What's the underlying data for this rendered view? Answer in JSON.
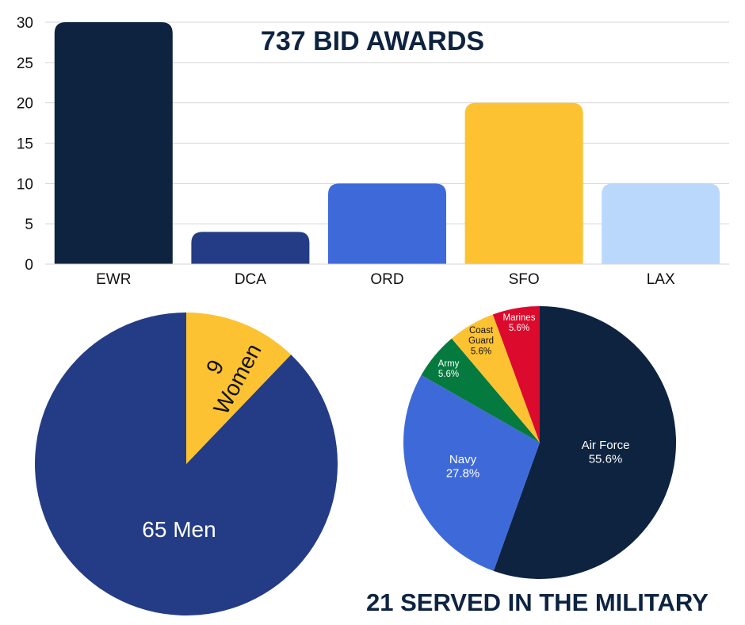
{
  "chart_data": [
    {
      "type": "bar",
      "title": "737 BID AWARDS",
      "categories": [
        "EWR",
        "DCA",
        "ORD",
        "SFO",
        "LAX"
      ],
      "values": [
        30,
        4,
        10,
        20,
        10
      ],
      "colors": [
        "#0d2340",
        "#243c85",
        "#3e6ad9",
        "#fcc232",
        "#b9d8fb"
      ],
      "ylim": [
        0,
        30
      ],
      "yticks": [
        0,
        5,
        10,
        15,
        20,
        25,
        30
      ],
      "grid": true,
      "xlabel": "",
      "ylabel": ""
    },
    {
      "type": "pie",
      "title": "",
      "slices": [
        {
          "label": "65 Men",
          "value": 65,
          "color": "#243c85"
        },
        {
          "label": "9 Women",
          "value": 9,
          "color": "#fcc232"
        }
      ]
    },
    {
      "type": "pie",
      "title": "21 SERVED IN THE MILITARY",
      "slices": [
        {
          "label": "Air Force",
          "value": 55.6,
          "pct": "55.6%",
          "color": "#0d2340"
        },
        {
          "label": "Navy",
          "value": 27.8,
          "pct": "27.8%",
          "color": "#3e6ad9"
        },
        {
          "label": "Army",
          "value": 5.6,
          "pct": "5.6%",
          "color": "#057a3e"
        },
        {
          "label": "Coast Guard",
          "value": 5.6,
          "pct": "5.6%",
          "color": "#fcc232"
        },
        {
          "label": "Marines",
          "value": 5.6,
          "pct": "5.6%",
          "color": "#dc0a2d"
        }
      ]
    }
  ],
  "text": {
    "bar_title": "737 BID AWARDS",
    "military_caption": "21 SERVED IN THE MILITARY"
  }
}
